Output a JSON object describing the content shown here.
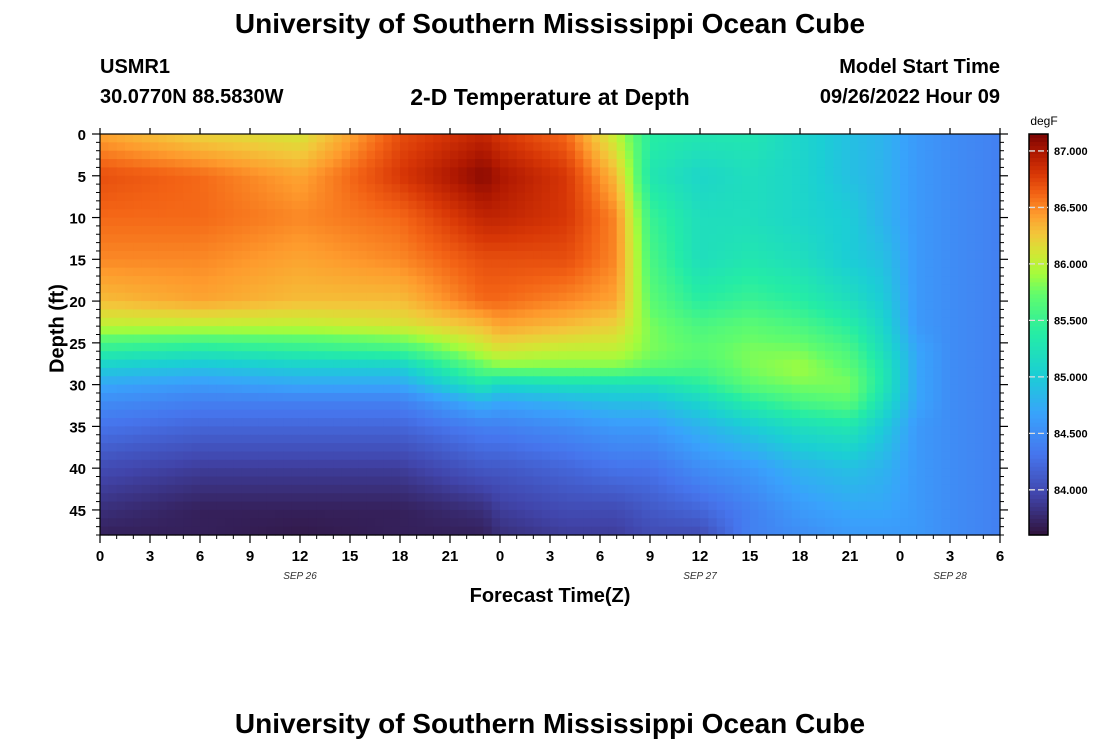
{
  "page": {
    "title_top": "University of Southern Mississippi Ocean Cube",
    "title_bottom": "University of Southern Mississippi Ocean Cube",
    "station_id": "USMR1",
    "station_coords": "30.0770N  88.5830W",
    "plot_title": "2-D Temperature at Depth",
    "model_start_label": "Model Start Time",
    "model_start_value": "09/26/2022 Hour 09"
  },
  "chart_data": {
    "type": "heatmap",
    "title": "2-D Temperature at Depth",
    "xlabel": "Forecast Time(Z)",
    "ylabel": "Depth (ft)",
    "x_unit": "hours from 2022-09-26 00Z",
    "x_range": [
      0,
      54
    ],
    "x_ticks": [
      {
        "value": 0,
        "label": "0"
      },
      {
        "value": 3,
        "label": "3"
      },
      {
        "value": 6,
        "label": "6"
      },
      {
        "value": 9,
        "label": "9"
      },
      {
        "value": 12,
        "label": "12"
      },
      {
        "value": 15,
        "label": "15"
      },
      {
        "value": 18,
        "label": "18"
      },
      {
        "value": 21,
        "label": "21"
      },
      {
        "value": 24,
        "label": "0"
      },
      {
        "value": 27,
        "label": "3"
      },
      {
        "value": 30,
        "label": "6"
      },
      {
        "value": 33,
        "label": "9"
      },
      {
        "value": 36,
        "label": "12"
      },
      {
        "value": 39,
        "label": "15"
      },
      {
        "value": 42,
        "label": "18"
      },
      {
        "value": 45,
        "label": "21"
      },
      {
        "value": 48,
        "label": "0"
      },
      {
        "value": 51,
        "label": "3"
      },
      {
        "value": 54,
        "label": "6"
      }
    ],
    "date_labels": [
      {
        "value": 12,
        "label": "SEP 26"
      },
      {
        "value": 36,
        "label": "SEP 27"
      },
      {
        "value": 51,
        "label": "SEP 28"
      }
    ],
    "y_range": [
      0,
      48
    ],
    "y_ticks": [
      0,
      5,
      10,
      15,
      20,
      25,
      30,
      35,
      40,
      45
    ],
    "colorbar": {
      "title": "degF",
      "range": [
        83.6,
        87.15
      ],
      "ticks": [
        "87.000",
        "86.500",
        "86.000",
        "85.500",
        "85.000",
        "84.500",
        "84.000"
      ],
      "tick_values": [
        87.0,
        86.5,
        86.0,
        85.5,
        85.0,
        84.5,
        84.0
      ]
    },
    "profile_times": [
      0,
      6,
      12,
      18,
      23,
      24,
      28,
      31,
      33,
      36,
      39,
      42,
      45,
      47,
      49,
      51,
      54
    ],
    "profile_depths": [
      0,
      5,
      10,
      15,
      20,
      23,
      26,
      28,
      30,
      32,
      35,
      40,
      45,
      48
    ],
    "temperature_degF": [
      [
        86.4,
        86.7,
        86.6,
        86.5,
        86.3,
        86.0,
        85.4,
        85.0,
        84.7,
        84.5,
        84.3,
        84.0,
        83.8,
        83.7
      ],
      [
        86.2,
        86.6,
        86.6,
        86.5,
        86.4,
        86.0,
        85.3,
        84.9,
        84.6,
        84.4,
        84.2,
        83.9,
        83.7,
        83.7
      ],
      [
        86.1,
        86.4,
        86.5,
        86.4,
        86.3,
        86.0,
        85.4,
        85.0,
        84.7,
        84.4,
        84.2,
        83.9,
        83.7,
        83.65
      ],
      [
        86.7,
        86.8,
        86.6,
        86.5,
        86.3,
        86.1,
        85.5,
        85.0,
        84.7,
        84.4,
        84.2,
        83.9,
        83.7,
        83.7
      ],
      [
        86.9,
        87.1,
        86.9,
        86.7,
        86.6,
        86.3,
        86.0,
        85.7,
        85.3,
        84.8,
        84.4,
        84.1,
        83.8,
        83.7
      ],
      [
        86.8,
        87.0,
        86.9,
        86.7,
        86.6,
        86.4,
        86.1,
        85.8,
        85.1,
        84.7,
        84.4,
        84.1,
        83.9,
        83.8
      ],
      [
        86.6,
        86.8,
        86.8,
        86.7,
        86.5,
        86.3,
        86.0,
        85.8,
        85.2,
        84.8,
        84.5,
        84.2,
        84.0,
        83.9
      ],
      [
        86.0,
        86.3,
        86.5,
        86.5,
        86.4,
        86.2,
        86.0,
        85.8,
        85.2,
        84.9,
        84.6,
        84.3,
        84.0,
        83.9
      ],
      [
        85.4,
        85.3,
        85.5,
        85.6,
        85.7,
        85.8,
        85.8,
        85.7,
        85.2,
        84.9,
        84.6,
        84.3,
        84.1,
        84.0
      ],
      [
        85.3,
        85.1,
        85.2,
        85.2,
        85.4,
        85.6,
        85.7,
        85.6,
        85.4,
        85.1,
        84.8,
        84.5,
        84.2,
        84.0
      ],
      [
        85.3,
        85.2,
        85.2,
        85.3,
        85.5,
        85.7,
        85.8,
        85.8,
        85.7,
        85.4,
        85.0,
        84.6,
        84.4,
        84.4
      ],
      [
        85.1,
        85.1,
        85.1,
        85.2,
        85.4,
        85.6,
        85.8,
        85.9,
        85.8,
        85.6,
        85.2,
        84.8,
        84.6,
        84.5
      ],
      [
        84.9,
        84.9,
        85.0,
        85.0,
        85.2,
        85.4,
        85.6,
        85.7,
        85.8,
        85.7,
        85.3,
        84.9,
        84.7,
        84.6
      ],
      [
        84.8,
        84.8,
        84.8,
        84.9,
        85.0,
        85.1,
        85.2,
        85.3,
        85.3,
        85.2,
        85.0,
        84.8,
        84.7,
        84.6
      ],
      [
        84.6,
        84.6,
        84.6,
        84.6,
        84.6,
        84.6,
        84.7,
        84.7,
        84.7,
        84.7,
        84.6,
        84.6,
        84.6,
        84.6
      ],
      [
        84.5,
        84.5,
        84.5,
        84.5,
        84.5,
        84.5,
        84.5,
        84.5,
        84.5,
        84.5,
        84.5,
        84.5,
        84.5,
        84.5
      ],
      [
        84.4,
        84.4,
        84.4,
        84.4,
        84.4,
        84.4,
        84.4,
        84.4,
        84.4,
        84.4,
        84.4,
        84.4,
        84.4,
        84.4
      ]
    ]
  }
}
